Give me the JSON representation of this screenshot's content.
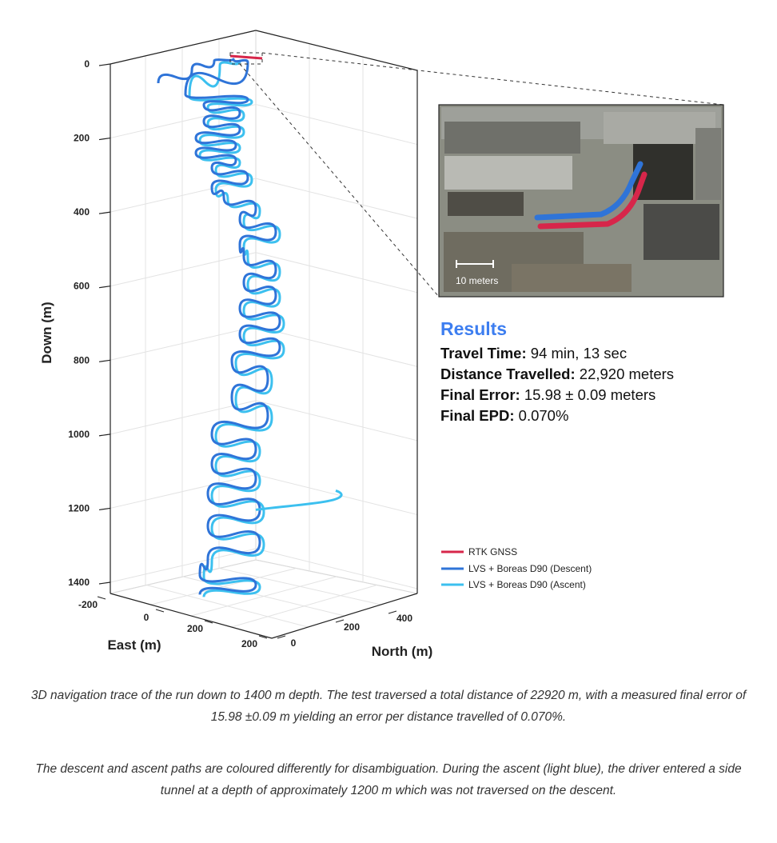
{
  "chart_data": {
    "type": "line",
    "projection": "3d",
    "axes": {
      "down": {
        "label": "Down (m)",
        "ticks": [
          "0",
          "200",
          "400",
          "600",
          "800",
          "1000",
          "1200",
          "1400"
        ],
        "range": [
          0,
          1400
        ],
        "inverted": true
      },
      "east": {
        "label": "East (m)",
        "ticks": [
          "-200",
          "0",
          "200",
          "200"
        ],
        "range": [
          -200,
          200
        ]
      },
      "north": {
        "label": "North (m)",
        "ticks": [
          "0",
          "200",
          "400"
        ],
        "range": [
          0,
          400
        ]
      }
    },
    "grid": true,
    "legend_position": "bottom-right",
    "series": [
      {
        "name": "RTK GNSS",
        "color": "#d7264a"
      },
      {
        "name": "LVS + Boreas D90 (Descent)",
        "color": "#2f74d8"
      },
      {
        "name": "LVS + Boreas D90 (Ascent)",
        "color": "#3cc0ef"
      }
    ],
    "annotations": [
      "side tunnel at approximately 1200 m depth (ascent only)"
    ]
  },
  "inset": {
    "scale_label": "10 meters"
  },
  "results": {
    "title": "Results",
    "rows": [
      {
        "label": "Travel Time:",
        "value": "94 min, 13 sec"
      },
      {
        "label": "Distance Travelled:",
        "value": "22,920 meters"
      },
      {
        "label": "Final Error:",
        "value": "15.98 ± 0.09 meters"
      },
      {
        "label": "Final EPD:",
        "value": "0.070%"
      }
    ]
  },
  "captions": [
    "3D navigation trace of the run down to 1400 m depth. The test traversed a total distance of 22920 m, with a measured final error of 15.98 ±0.09 m yielding an error per distance travelled of 0.070%.",
    "The descent and ascent paths are coloured differently for disambiguation. During the ascent (light blue), the driver entered a side tunnel at a depth of approximately 1200 m which was not traversed on the descent."
  ]
}
